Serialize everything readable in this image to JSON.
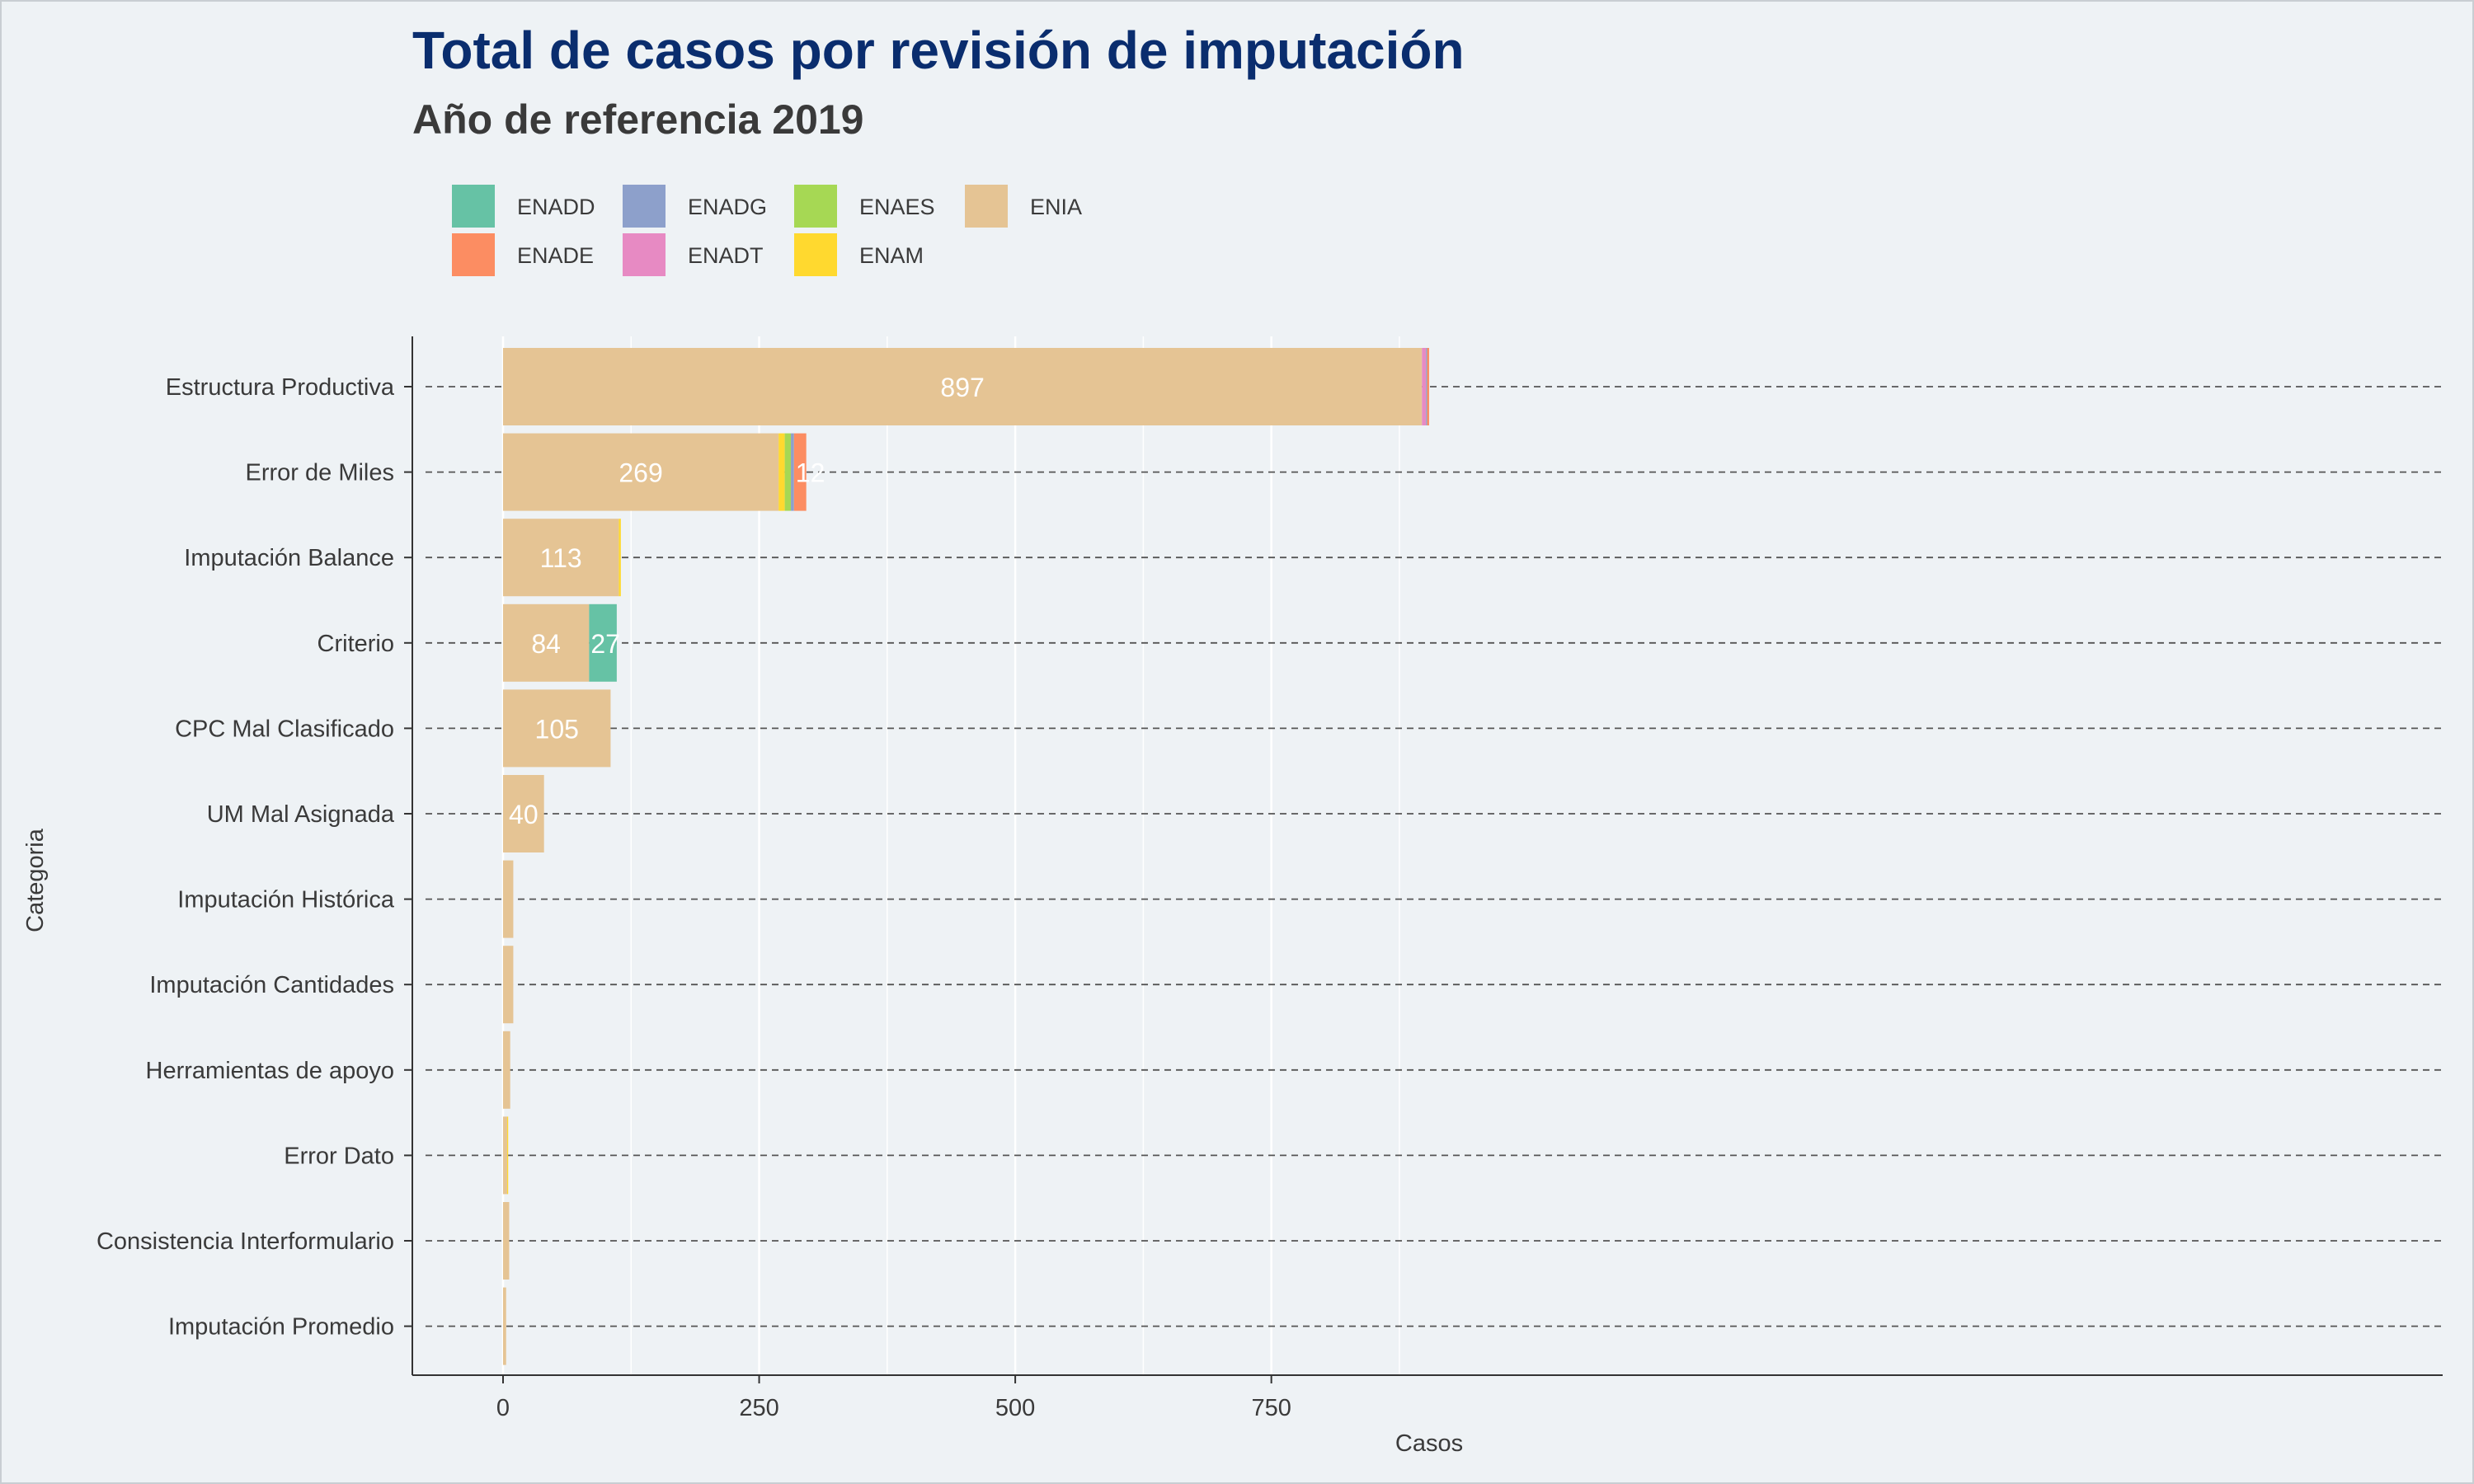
{
  "chart_data": {
    "type": "bar",
    "orientation": "horizontal",
    "stacked": true,
    "title": "Total de casos por revisión de imputación",
    "subtitle": "Año de referencia 2019",
    "xlabel": "Casos",
    "ylabel": "Categoria",
    "xlim": [
      -45,
      950
    ],
    "xticks": [
      "0",
      "250",
      "500",
      "750"
    ],
    "grid": true,
    "legend_position": "top",
    "categories": [
      "Estructura Productiva",
      "Error de Miles",
      "Imputación Balance",
      "Criterio",
      "CPC Mal Clasificado",
      "UM Mal Asignada",
      "Imputación Histórica",
      "Imputación Cantidades",
      "Herramientas de apoyo",
      "Error Dato",
      "Consistencia Interformulario",
      "Imputación Promedio"
    ],
    "series": [
      {
        "name": "ENIA",
        "color": "#e5c494",
        "values": [
          897,
          269,
          113,
          84,
          105,
          40,
          10,
          10,
          7,
          4,
          6,
          3
        ]
      },
      {
        "name": "ENAM",
        "color": "#ffd92f",
        "values": [
          0,
          6,
          2,
          0,
          0,
          0,
          0,
          0,
          0,
          1,
          0,
          0
        ]
      },
      {
        "name": "ENAES",
        "color": "#a6d854",
        "values": [
          0,
          6,
          0,
          0,
          0,
          0,
          0,
          0,
          0,
          0,
          0,
          0
        ]
      },
      {
        "name": "ENADT",
        "color": "#e78ac3",
        "values": [
          4,
          0,
          0,
          0,
          0,
          0,
          0,
          0,
          0,
          0,
          0,
          0
        ]
      },
      {
        "name": "ENADG",
        "color": "#8da0cb",
        "values": [
          1,
          3,
          0,
          0,
          0,
          0,
          0,
          0,
          0,
          0,
          0,
          0
        ]
      },
      {
        "name": "ENADE",
        "color": "#fc8d62",
        "values": [
          2,
          12,
          0,
          0,
          0,
          0,
          0,
          0,
          0,
          0,
          0,
          0
        ]
      },
      {
        "name": "ENADD",
        "color": "#66c2a5",
        "values": [
          0,
          0,
          0,
          27,
          0,
          0,
          0,
          0,
          0,
          0,
          0,
          0
        ]
      }
    ],
    "data_labels": [
      {
        "category": "Estructura Productiva",
        "series": "ENIA",
        "text": "897"
      },
      {
        "category": "Error de Miles",
        "series": "ENIA",
        "text": "269"
      },
      {
        "category": "Error de Miles",
        "series": "ENADE",
        "text": "12"
      },
      {
        "category": "Imputación Balance",
        "series": "ENIA",
        "text": "113"
      },
      {
        "category": "Criterio",
        "series": "ENIA",
        "text": "84"
      },
      {
        "category": "Criterio",
        "series": "ENADD",
        "text": "27"
      },
      {
        "category": "CPC Mal Clasificado",
        "series": "ENIA",
        "text": "105"
      },
      {
        "category": "UM Mal Asignada",
        "series": "ENIA",
        "text": "40"
      }
    ],
    "legend": [
      {
        "name": "ENADD",
        "color": "#66c2a5"
      },
      {
        "name": "ENADE",
        "color": "#fc8d62"
      },
      {
        "name": "ENADG",
        "color": "#8da0cb"
      },
      {
        "name": "ENADT",
        "color": "#e78ac3"
      },
      {
        "name": "ENAES",
        "color": "#a6d854"
      },
      {
        "name": "ENAM",
        "color": "#ffd92f"
      },
      {
        "name": "ENIA",
        "color": "#e5c494"
      }
    ],
    "colors": {
      "title": "#0a2d6e",
      "subtitle": "#3a3a3a",
      "background": "#eef2f5",
      "grid": "#ffffff",
      "dashed_line": "#555555"
    }
  }
}
